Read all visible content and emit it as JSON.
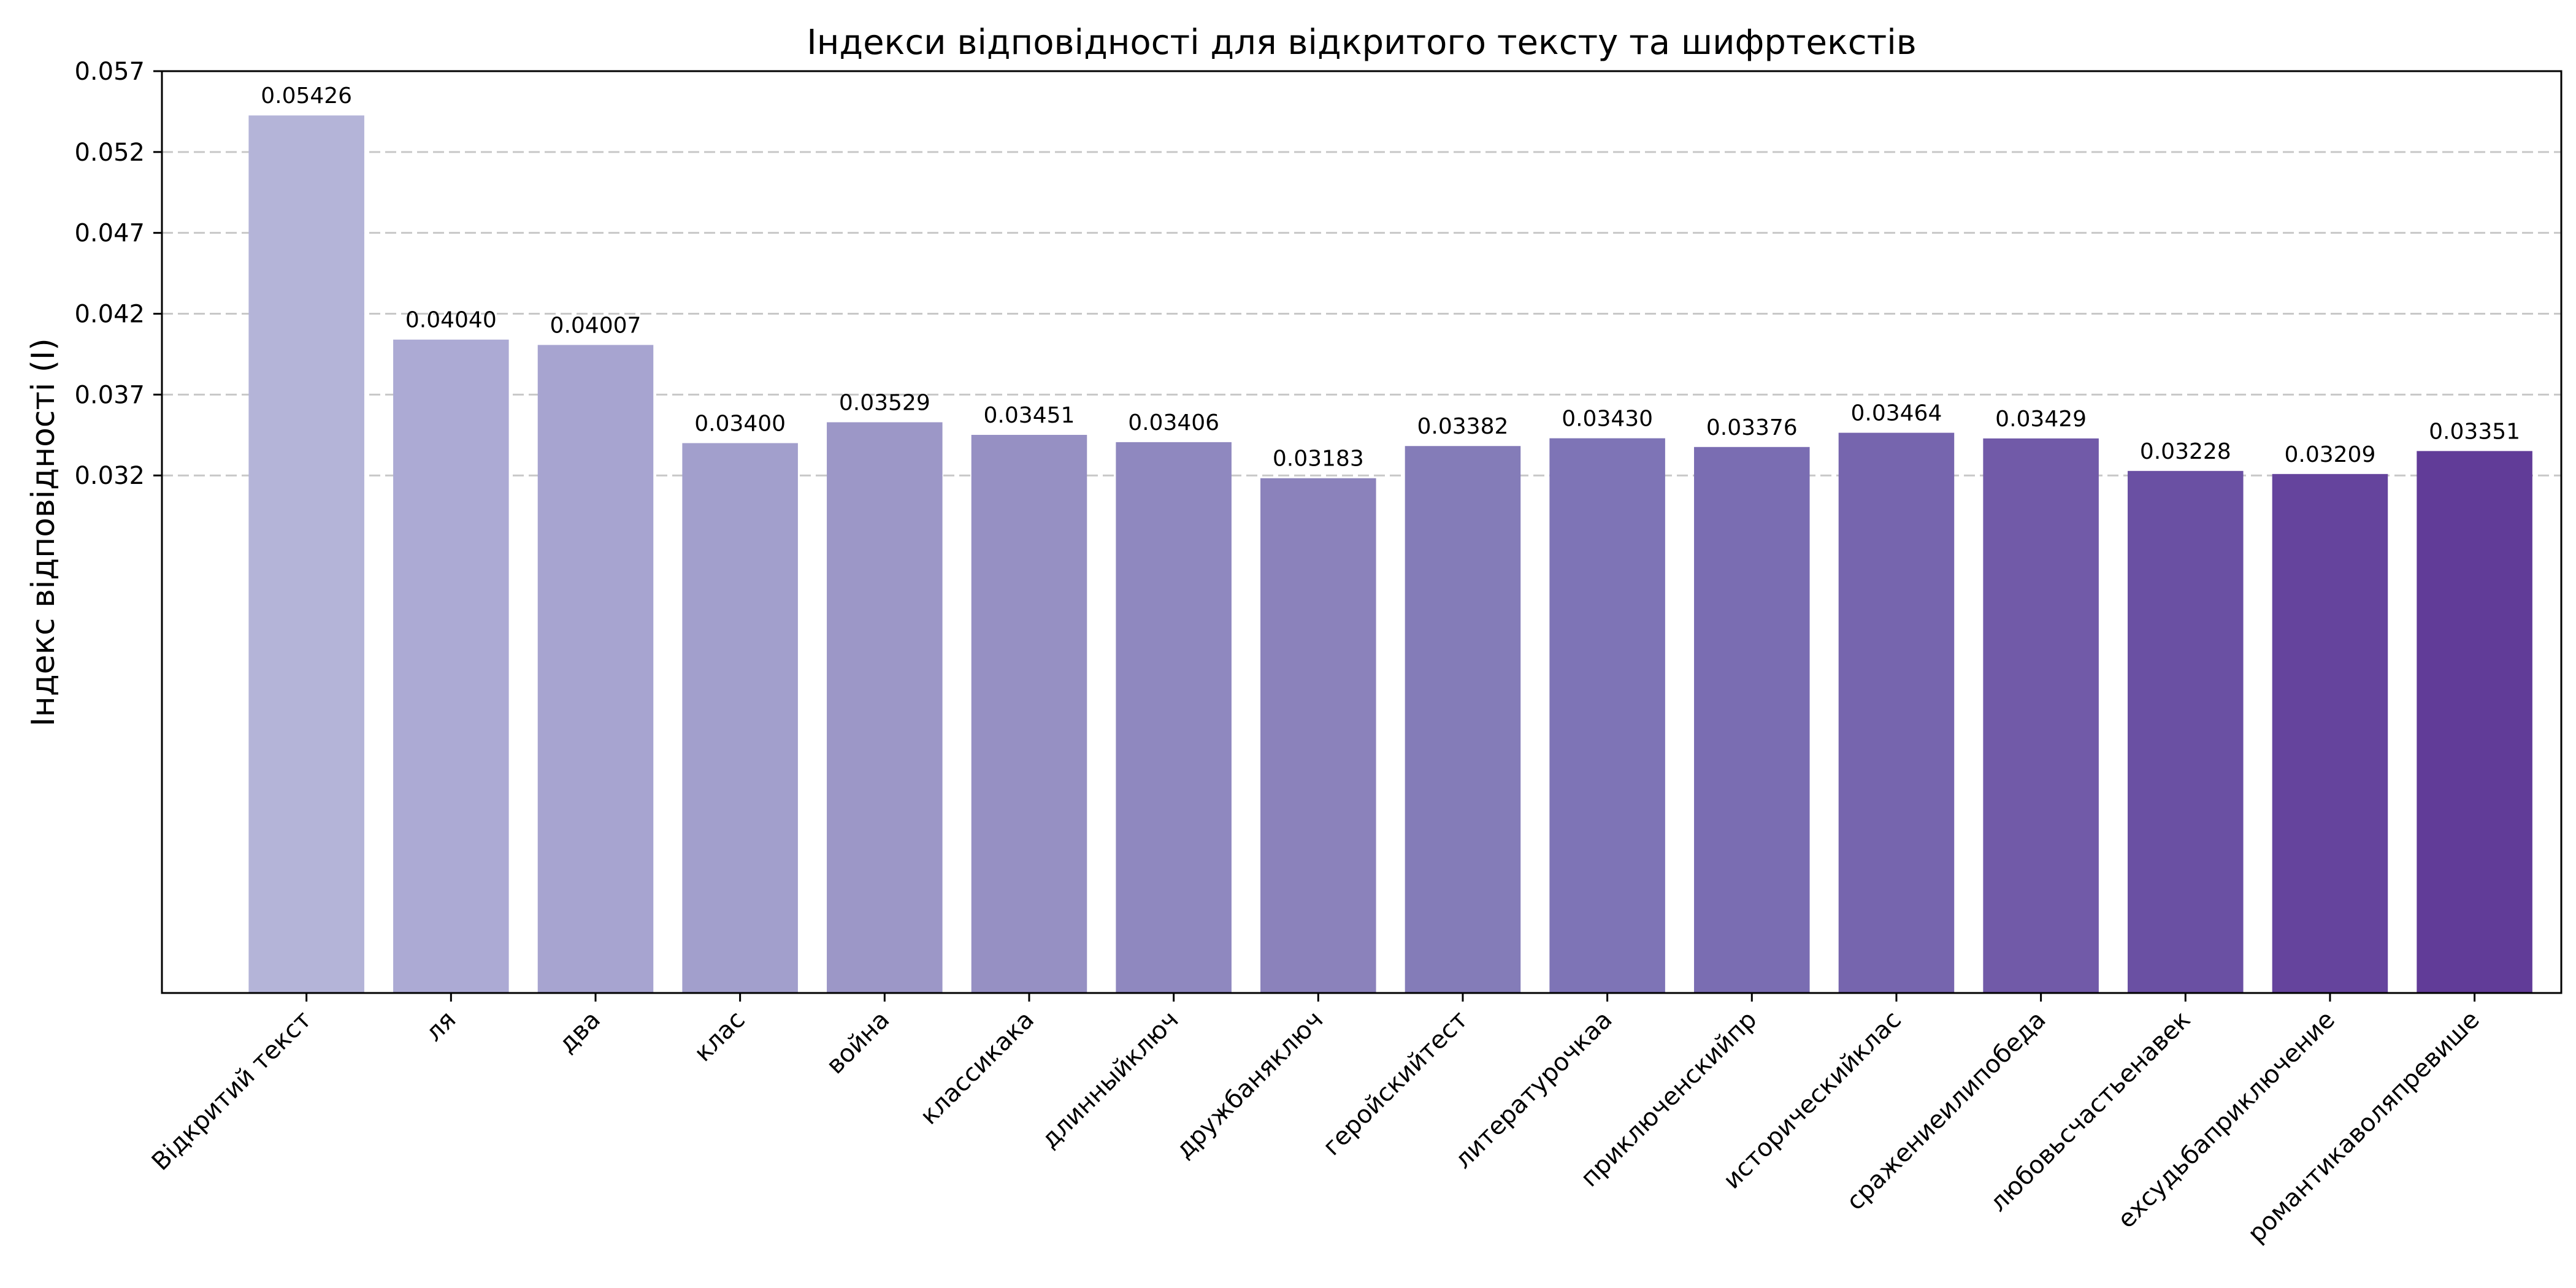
{
  "chart_data": {
    "type": "bar",
    "title": "Індекси відповідності для відкритого тексту та шифртекстів",
    "xlabel": "",
    "ylabel": "Індекс відповідності (I)",
    "ylim": [
      0.0,
      0.057
    ],
    "yticks": [
      "0.032",
      "0.037",
      "0.042",
      "0.047",
      "0.052",
      "0.057"
    ],
    "grid": "y-dashed",
    "categories": [
      "Відкритий текст",
      "ля",
      "два",
      "клас",
      "война",
      "классикака",
      "длинныйключ",
      "дружбаняключ",
      "геройскийтест",
      "литературочкаа",
      "приключенскийпр",
      "историческийклас",
      "сражениеилипобеда",
      "любовьсчастьенавек",
      "ехсудьбаприключение",
      "романтикаволяпревише"
    ],
    "values": [
      0.05426,
      0.0404,
      0.04007,
      0.034,
      0.03529,
      0.03451,
      0.03406,
      0.03183,
      0.03382,
      0.0343,
      0.03376,
      0.03464,
      0.03429,
      0.03228,
      0.03209,
      0.03351
    ],
    "value_labels": [
      "0.05426",
      "0.04040",
      "0.04007",
      "0.03400",
      "0.03529",
      "0.03451",
      "0.03406",
      "0.03183",
      "0.03382",
      "0.03430",
      "0.03376",
      "0.03464",
      "0.03429",
      "0.03228",
      "0.03209",
      "0.03351"
    ],
    "colors": [
      "#b4b4d8",
      "#acaad4",
      "#a7a4d0",
      "#a29fcc",
      "#9c97c7",
      "#9690c3",
      "#8f88bf",
      "#8b82bb",
      "#847cb8",
      "#7e74b6",
      "#7a6db2",
      "#7665ae",
      "#715aa8",
      "#6a50a3",
      "#65449d",
      "#613c98"
    ]
  }
}
